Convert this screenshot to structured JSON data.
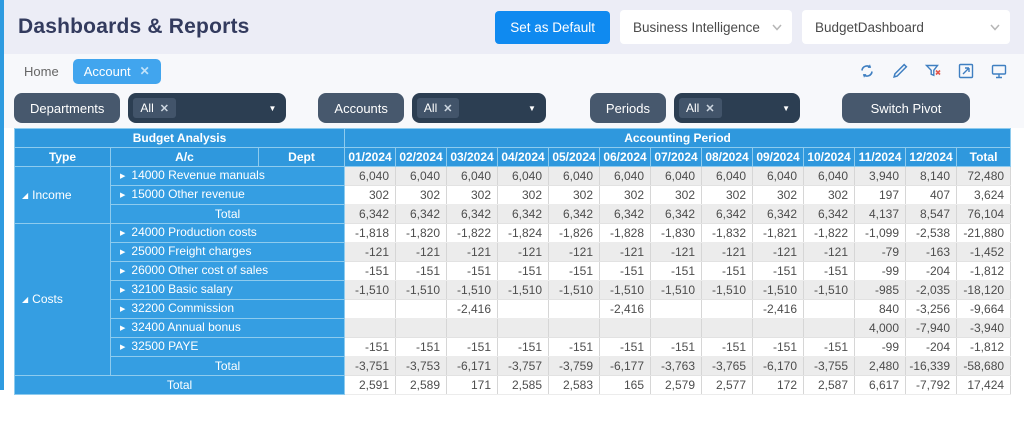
{
  "header": {
    "title": "Dashboards & Reports",
    "set_default_label": "Set as Default",
    "module_select_value": "Business Intelligence",
    "dashboard_select_value": "BudgetDashboard"
  },
  "tabs": {
    "home_label": "Home",
    "active_label": "Account",
    "close_glyph": "✕"
  },
  "toolbar": {
    "icons": [
      "refresh-icon",
      "edit-icon",
      "clear-filter-icon",
      "expand-icon",
      "display-icon"
    ]
  },
  "filters": {
    "departments_label": "Departments",
    "accounts_label": "Accounts",
    "periods_label": "Periods",
    "chip_label": "All",
    "chip_close_glyph": "✕",
    "switch_pivot_label": "Switch Pivot"
  },
  "colors": {
    "accent_blue": "#2e9be0",
    "button_blue": "#0f8af0",
    "tab_blue": "#41a5ee",
    "slate": "#47586d",
    "dropdown_slate": "#2c3e52",
    "header_blue": "#2f98dd",
    "label_blue": "#359ee2",
    "zebra_gray": "#ececec"
  },
  "table": {
    "group_header_left": "Budget Analysis",
    "group_header_right": "Accounting Period",
    "col_type": "Type",
    "col_ac": "A/c",
    "col_dept": "Dept",
    "months": [
      "01/2024",
      "02/2024",
      "03/2024",
      "04/2024",
      "05/2024",
      "06/2024",
      "07/2024",
      "08/2024",
      "09/2024",
      "10/2024",
      "11/2024",
      "12/2024"
    ],
    "total_col": "Total",
    "groups": [
      {
        "name": "Income",
        "rows": [
          {
            "label": "14000 Revenue manuals",
            "values": [
              "6,040",
              "6,040",
              "6,040",
              "6,040",
              "6,040",
              "6,040",
              "6,040",
              "6,040",
              "6,040",
              "6,040",
              "3,940",
              "8,140",
              "72,480"
            ]
          },
          {
            "label": "15000 Other revenue",
            "values": [
              "302",
              "302",
              "302",
              "302",
              "302",
              "302",
              "302",
              "302",
              "302",
              "302",
              "197",
              "407",
              "3,624"
            ]
          }
        ],
        "total_label": "Total",
        "total_values": [
          "6,342",
          "6,342",
          "6,342",
          "6,342",
          "6,342",
          "6,342",
          "6,342",
          "6,342",
          "6,342",
          "6,342",
          "4,137",
          "8,547",
          "76,104"
        ]
      },
      {
        "name": "Costs",
        "rows": [
          {
            "label": "24000 Production costs",
            "values": [
              "-1,818",
              "-1,820",
              "-1,822",
              "-1,824",
              "-1,826",
              "-1,828",
              "-1,830",
              "-1,832",
              "-1,821",
              "-1,822",
              "-1,099",
              "-2,538",
              "-21,880"
            ]
          },
          {
            "label": "25000 Freight charges",
            "values": [
              "-121",
              "-121",
              "-121",
              "-121",
              "-121",
              "-121",
              "-121",
              "-121",
              "-121",
              "-121",
              "-79",
              "-163",
              "-1,452"
            ]
          },
          {
            "label": "26000 Other cost of sales",
            "values": [
              "-151",
              "-151",
              "-151",
              "-151",
              "-151",
              "-151",
              "-151",
              "-151",
              "-151",
              "-151",
              "-99",
              "-204",
              "-1,812"
            ]
          },
          {
            "label": "32100 Basic salary",
            "values": [
              "-1,510",
              "-1,510",
              "-1,510",
              "-1,510",
              "-1,510",
              "-1,510",
              "-1,510",
              "-1,510",
              "-1,510",
              "-1,510",
              "-985",
              "-2,035",
              "-18,120"
            ]
          },
          {
            "label": "32200 Commission",
            "values": [
              "",
              "",
              "-2,416",
              "",
              "",
              "-2,416",
              "",
              "",
              "-2,416",
              "",
              "840",
              "-3,256",
              "-9,664"
            ]
          },
          {
            "label": "32400 Annual bonus",
            "values": [
              "",
              "",
              "",
              "",
              "",
              "",
              "",
              "",
              "",
              "",
              "4,000",
              "-7,940",
              "-3,940"
            ]
          },
          {
            "label": "32500 PAYE",
            "values": [
              "-151",
              "-151",
              "-151",
              "-151",
              "-151",
              "-151",
              "-151",
              "-151",
              "-151",
              "-151",
              "-99",
              "-204",
              "-1,812"
            ]
          }
        ],
        "total_label": "Total",
        "total_values": [
          "-3,751",
          "-3,753",
          "-6,171",
          "-3,757",
          "-3,759",
          "-6,177",
          "-3,763",
          "-3,765",
          "-6,170",
          "-3,755",
          "2,480",
          "-16,339",
          "-58,680"
        ]
      }
    ],
    "grand_total_label": "Total",
    "grand_total_values": [
      "2,591",
      "2,589",
      "171",
      "2,585",
      "2,583",
      "165",
      "2,579",
      "2,577",
      "172",
      "2,587",
      "6,617",
      "-7,792",
      "17,424"
    ]
  }
}
